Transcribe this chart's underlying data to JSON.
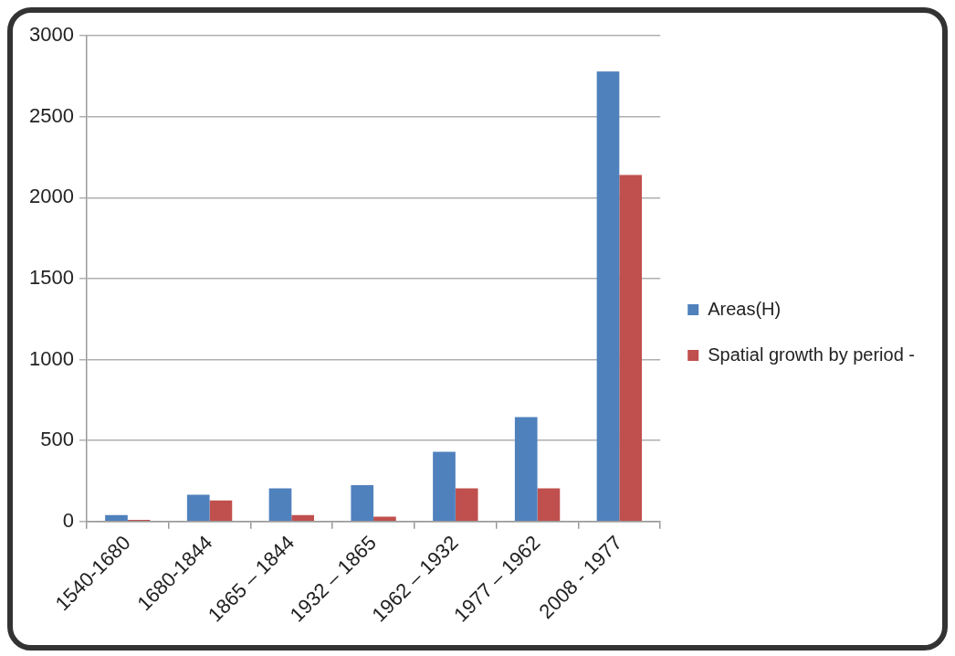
{
  "chart_data": {
    "type": "bar",
    "categories": [
      "1540-1680",
      "1680-1844",
      "1865 – 1844",
      "1932 – 1865",
      "1962 – 1932",
      "1977 – 1962",
      "2008 - 1977"
    ],
    "series": [
      {
        "name": "Areas(H)",
        "color": "#4f81bd",
        "values": [
          40,
          165,
          205,
          225,
          430,
          645,
          2780
        ]
      },
      {
        "name": "Spatial growth by period -",
        "color": "#c0504d",
        "values": [
          10,
          130,
          40,
          30,
          205,
          205,
          2140
        ]
      }
    ],
    "ylim": [
      0,
      3000
    ],
    "yticks": [
      0,
      500,
      1000,
      1500,
      2000,
      2500,
      3000
    ],
    "grid": "y",
    "legend": "right"
  }
}
